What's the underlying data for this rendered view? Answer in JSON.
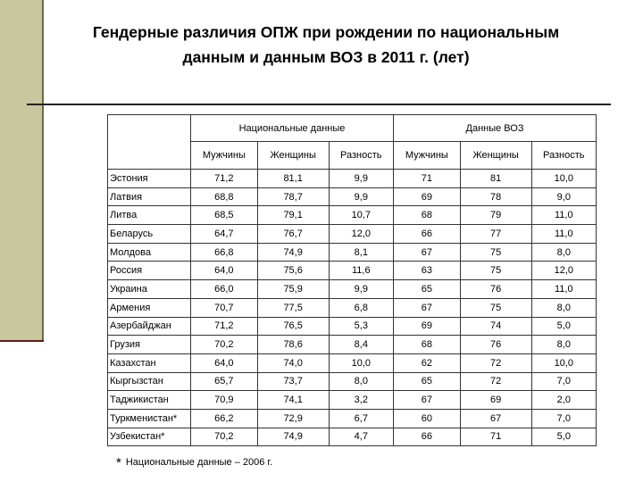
{
  "title": "Гендерные различия ОПЖ при рождении по национальным\nданным и данным ВОЗ в 2011 г. (лет)",
  "group_headers": [
    "Национальные данные",
    "Данные ВОЗ"
  ],
  "column_headers": [
    "Мужчины",
    "Женщины",
    "Разность",
    "Мужчины",
    "Женщины",
    "Разность"
  ],
  "rows": [
    [
      "Эстония",
      "71,2",
      "81,1",
      "9,9",
      "71",
      "81",
      "10,0"
    ],
    [
      "Латвия",
      "68,8",
      "78,7",
      "9,9",
      "69",
      "78",
      "9,0"
    ],
    [
      "Литва",
      "68,5",
      "79,1",
      "10,7",
      "68",
      "79",
      "11,0"
    ],
    [
      "Беларусь",
      "64,7",
      "76,7",
      "12,0",
      "66",
      "77",
      "11,0"
    ],
    [
      "Молдова",
      "66,8",
      "74,9",
      "8,1",
      "67",
      "75",
      "8,0"
    ],
    [
      "Россия",
      "64,0",
      "75,6",
      "11,6",
      "63",
      "75",
      "12,0"
    ],
    [
      "Украина",
      "66,0",
      "75,9",
      "9,9",
      "65",
      "76",
      "11,0"
    ],
    [
      "Армения",
      "70,7",
      "77,5",
      "6,8",
      "67",
      "75",
      "8,0"
    ],
    [
      "Азербайджан",
      "71,2",
      "76,5",
      "5,3",
      "69",
      "74",
      "5,0"
    ],
    [
      "Грузия",
      "70,2",
      "78,6",
      "8,4",
      "68",
      "76",
      "8,0"
    ],
    [
      "Казахстан",
      "64,0",
      "74,0",
      "10,0",
      "62",
      "72",
      "10,0"
    ],
    [
      "Кыргызстан",
      "65,7",
      "73,7",
      "8,0",
      "65",
      "72",
      "7,0"
    ],
    [
      "Таджикистан",
      "70,9",
      "74,1",
      "3,2",
      "67",
      "69",
      "2,0"
    ],
    [
      "Туркменистан*",
      "66,2",
      "72,9",
      "6,7",
      "60",
      "67",
      "7,0"
    ],
    [
      "Узбекистан*",
      "70,2",
      "74,9",
      "4,7",
      "66",
      "71",
      "5,0"
    ]
  ],
  "footnote": {
    "mark": "*",
    "text": "Национальные данные – 2006 г."
  }
}
